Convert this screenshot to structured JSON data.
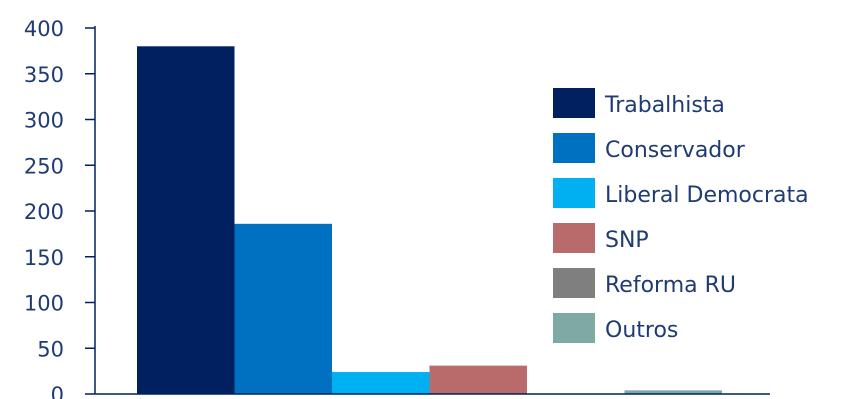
{
  "chart_data": {
    "type": "bar",
    "title": "",
    "xlabel": "",
    "ylabel": "",
    "ylim": [
      0,
      400
    ],
    "y_ticks": [
      0,
      50,
      100,
      150,
      200,
      250,
      300,
      350,
      400
    ],
    "grid": false,
    "legend_position": "right",
    "categories": [
      "Trabalhista",
      "Conservador",
      "Liberal Democrata",
      "SNP",
      "Reforma RU",
      "Outros"
    ],
    "values": [
      380,
      186,
      24,
      31,
      0,
      4
    ],
    "colors": [
      "#002060",
      "#0070c0",
      "#00b0f0",
      "#b96b6b",
      "#7f7f7f",
      "#7fa9a3"
    ]
  }
}
